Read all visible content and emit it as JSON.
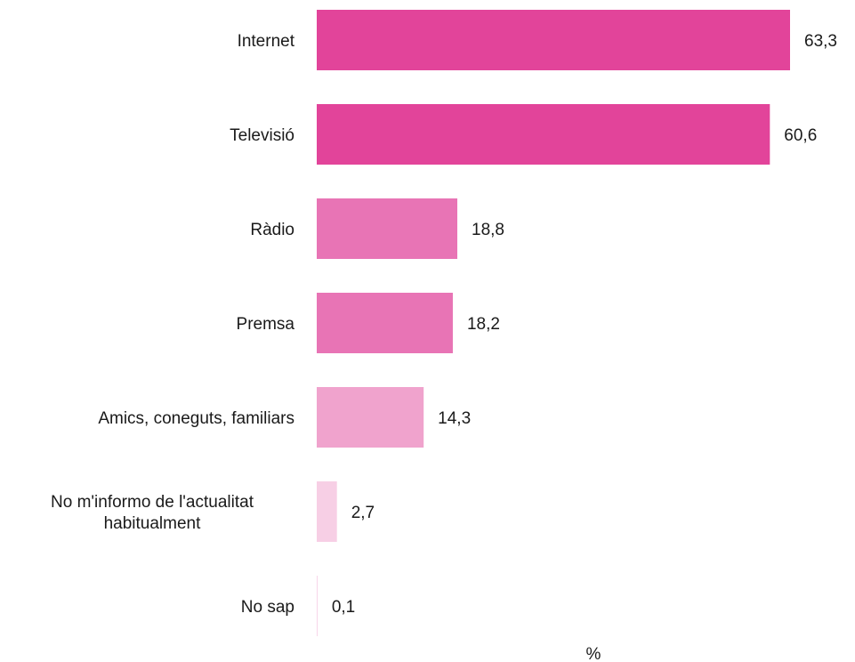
{
  "chart_data": {
    "type": "bar",
    "orientation": "horizontal",
    "categories": [
      "Internet",
      "Televisió",
      "Ràdio",
      "Premsa",
      "Amics, coneguts, familiars",
      "No m'informo de l'actualitat habitualment",
      "No sap"
    ],
    "category_lines": [
      [
        "Internet"
      ],
      [
        "Televisió"
      ],
      [
        "Ràdio"
      ],
      [
        "Premsa"
      ],
      [
        "Amics, coneguts, familiars"
      ],
      [
        "No m'informo de l'actualitat",
        "habitualment"
      ],
      [
        "No sap"
      ]
    ],
    "values": [
      63.3,
      60.6,
      18.8,
      18.2,
      14.3,
      2.7,
      0.1
    ],
    "value_labels": [
      "63,3",
      "60,6",
      "18,8",
      "18,2",
      "14,3",
      "2,7",
      "0,1"
    ],
    "colors": [
      "#e2449a",
      "#e2449a",
      "#e874b5",
      "#e874b5",
      "#f0a3cd",
      "#f7cfe5",
      "#f7cfe5"
    ],
    "xlabel": "%",
    "ylabel": "",
    "xlim": [
      0,
      63.3
    ],
    "grid": false,
    "legend": "none"
  }
}
